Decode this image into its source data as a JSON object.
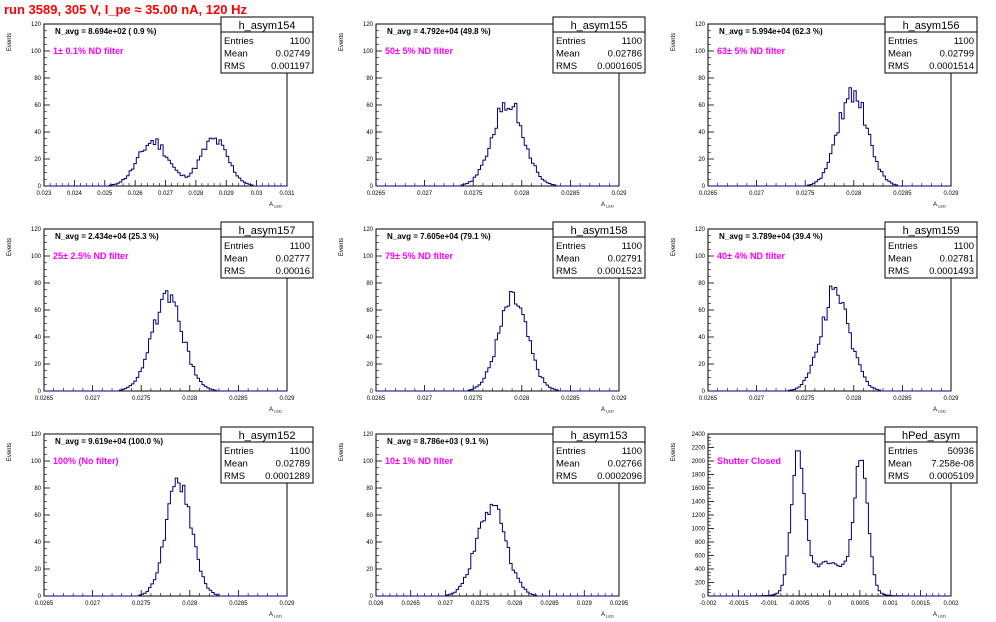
{
  "page_title": "run 3589,   305 V, I_pe ≈ 35.00 nA, 120 Hz",
  "colors": {
    "title": "#ff0000",
    "histogram": "#000080",
    "annotation": "#ff00ff",
    "axis": "#000000"
  },
  "chart_data": [
    {
      "type": "histogram",
      "name": "h_asym154",
      "stats": {
        "Entries": "1100",
        "Mean": "0.02749",
        "RMS": "0.001197"
      },
      "navg_text": "N_avg = 8.694e+02 ( 0.9 %)",
      "filter_text": "1± 0.1% ND filter",
      "ylabel": "Events",
      "xlabel": "A_LED",
      "xlim": [
        0.023,
        0.031
      ],
      "ylim": [
        0,
        120
      ],
      "xticks": [
        0.023,
        0.024,
        0.025,
        0.026,
        0.027,
        0.028,
        0.029,
        0.03,
        0.031
      ],
      "xtick_labels": [
        "0.023",
        "0.024",
        "0.025",
        "0.026",
        "0.027",
        "0.028",
        "0.029",
        "0.03",
        "0.031"
      ],
      "yticks": [
        20,
        40,
        60,
        80,
        100,
        120
      ],
      "shape": {
        "peaks": [
          [
            0.0266,
            33,
            0.0005
          ],
          [
            0.0286,
            34,
            0.00045
          ]
        ],
        "noise": 0.14
      }
    },
    {
      "type": "histogram",
      "name": "h_asym155",
      "stats": {
        "Entries": "1100",
        "Mean": "0.02786",
        "RMS": "0.0001605"
      },
      "navg_text": "N_avg = 4.792e+04 (49.8 %)",
      "filter_text": "50± 5% ND filter",
      "ylabel": "Events",
      "xlabel": "A_LED",
      "xlim": [
        0.0265,
        0.029
      ],
      "ylim": [
        0,
        120
      ],
      "xticks": [
        0.0265,
        0.027,
        0.0275,
        0.028,
        0.0285,
        0.029
      ],
      "xtick_labels": [
        "0.0265",
        "0.027",
        "0.0275",
        "0.028",
        "0.0285",
        "0.029"
      ],
      "yticks": [
        20,
        40,
        60,
        80,
        100,
        120
      ],
      "shape": {
        "peaks": [
          [
            0.02786,
            62,
            0.00016
          ]
        ],
        "noise": 0.12
      }
    },
    {
      "type": "histogram",
      "name": "h_asym156",
      "stats": {
        "Entries": "1100",
        "Mean": "0.02799",
        "RMS": "0.0001514"
      },
      "navg_text": "N_avg = 5.994e+04 (62.3 %)",
      "filter_text": "63± 5% ND filter",
      "ylabel": "Events",
      "xlabel": "A_LED",
      "xlim": [
        0.0265,
        0.029
      ],
      "ylim": [
        0,
        120
      ],
      "xticks": [
        0.0265,
        0.027,
        0.0275,
        0.028,
        0.0285,
        0.029
      ],
      "xtick_labels": [
        "0.0265",
        "0.027",
        "0.0275",
        "0.028",
        "0.0285",
        "0.029"
      ],
      "yticks": [
        20,
        40,
        60,
        80,
        100,
        120
      ],
      "shape": {
        "peaks": [
          [
            0.02799,
            70,
            0.00015
          ]
        ],
        "noise": 0.12
      }
    },
    {
      "type": "histogram",
      "name": "h_asym157",
      "stats": {
        "Entries": "1100",
        "Mean": "0.02777",
        "RMS": "0.00016"
      },
      "navg_text": "N_avg = 2.434e+04 (25.3 %)",
      "filter_text": "25± 2.5% ND filter",
      "ylabel": "Events",
      "xlabel": "A_LED",
      "xlim": [
        0.0265,
        0.029
      ],
      "ylim": [
        0,
        120
      ],
      "xticks": [
        0.0265,
        0.027,
        0.0275,
        0.028,
        0.0285,
        0.029
      ],
      "xtick_labels": [
        "0.0265",
        "0.027",
        "0.0275",
        "0.028",
        "0.0285",
        "0.029"
      ],
      "yticks": [
        20,
        40,
        60,
        80,
        100,
        120
      ],
      "shape": {
        "peaks": [
          [
            0.02777,
            68,
            0.00016
          ]
        ],
        "noise": 0.1
      }
    },
    {
      "type": "histogram",
      "name": "h_asym158",
      "stats": {
        "Entries": "1100",
        "Mean": "0.02791",
        "RMS": "0.0001523"
      },
      "navg_text": "N_avg = 7.605e+04 (79.1 %)",
      "filter_text": "79± 5% ND filter",
      "ylabel": "Events",
      "xlabel": "A_LED",
      "xlim": [
        0.0265,
        0.029
      ],
      "ylim": [
        0,
        120
      ],
      "xticks": [
        0.0265,
        0.027,
        0.0275,
        0.028,
        0.0285,
        0.029
      ],
      "xtick_labels": [
        "0.0265",
        "0.027",
        "0.0275",
        "0.028",
        "0.0285",
        "0.029"
      ],
      "yticks": [
        20,
        40,
        60,
        80,
        100,
        120
      ],
      "shape": {
        "peaks": [
          [
            0.02791,
            68,
            0.00015
          ]
        ],
        "noise": 0.12
      }
    },
    {
      "type": "histogram",
      "name": "h_asym159",
      "stats": {
        "Entries": "1100",
        "Mean": "0.02781",
        "RMS": "0.0001493"
      },
      "navg_text": "N_avg = 3.789e+04 (39.4 %)",
      "filter_text": "40± 4% ND filter",
      "ylabel": "Events",
      "xlabel": "A_LED",
      "xlim": [
        0.0265,
        0.029
      ],
      "ylim": [
        0,
        120
      ],
      "xticks": [
        0.0265,
        0.027,
        0.0275,
        0.028,
        0.0285,
        0.029
      ],
      "xtick_labels": [
        "0.0265",
        "0.027",
        "0.0275",
        "0.028",
        "0.0285",
        "0.029"
      ],
      "yticks": [
        20,
        40,
        60,
        80,
        100,
        120
      ],
      "shape": {
        "peaks": [
          [
            0.02781,
            72,
            0.00015
          ]
        ],
        "noise": 0.14
      }
    },
    {
      "type": "histogram",
      "name": "h_asym152",
      "stats": {
        "Entries": "1100",
        "Mean": "0.02789",
        "RMS": "0.0001289"
      },
      "navg_text": "N_avg = 9.619e+04 (100.0 %)",
      "filter_text": "100% (No filter)",
      "ylabel": "Events",
      "xlabel": "A_LED",
      "xlim": [
        0.0265,
        0.029
      ],
      "ylim": [
        0,
        120
      ],
      "xticks": [
        0.0265,
        0.027,
        0.0275,
        0.028,
        0.0285,
        0.029
      ],
      "xtick_labels": [
        "0.0265",
        "0.027",
        "0.0275",
        "0.028",
        "0.0285",
        "0.029"
      ],
      "yticks": [
        20,
        40,
        60,
        80,
        100,
        120
      ],
      "shape": {
        "peaks": [
          [
            0.02789,
            86,
            0.00013
          ]
        ],
        "noise": 0.1
      }
    },
    {
      "type": "histogram",
      "name": "h_asym153",
      "stats": {
        "Entries": "1100",
        "Mean": "0.02766",
        "RMS": "0.0002096"
      },
      "navg_text": "N_avg = 8.786e+03 ( 9.1 %)",
      "filter_text": "10± 1% ND filter",
      "ylabel": "Events",
      "xlabel": "A_LED",
      "xlim": [
        0.026,
        0.0295
      ],
      "ylim": [
        0,
        120
      ],
      "xticks": [
        0.026,
        0.0265,
        0.027,
        0.0275,
        0.028,
        0.0285,
        0.029,
        0.0295
      ],
      "xtick_labels": [
        "0.026",
        "0.0265",
        "0.027",
        "0.0275",
        "0.028",
        "0.0285",
        "0.029",
        "0.0295"
      ],
      "yticks": [
        20,
        40,
        60,
        80,
        100,
        120
      ],
      "shape": {
        "peaks": [
          [
            0.02766,
            68,
            0.00021
          ]
        ],
        "noise": 0.14
      }
    },
    {
      "type": "histogram",
      "name": "hPed_asym",
      "stats": {
        "Entries": "50936",
        "Mean": "7.258e-08",
        "RMS": "0.0005109"
      },
      "navg_text": "",
      "filter_text": "Shutter Closed",
      "ylabel": "Events",
      "xlabel": "A_LED",
      "xlim": [
        -0.002,
        0.002
      ],
      "ylim": [
        0,
        2400
      ],
      "xticks": [
        -0.002,
        -0.0015,
        -0.001,
        -0.0005,
        0,
        0.0005,
        0.001,
        0.0015,
        0.002
      ],
      "xtick_labels": [
        "-0.002",
        "-0.0015",
        "-0.001",
        "-0.0005",
        "0",
        "0.0005",
        "0.001",
        "0.0015",
        "0.002"
      ],
      "yticks": [
        200,
        400,
        600,
        800,
        1000,
        1200,
        1400,
        1600,
        1800,
        2000,
        2200,
        2400
      ],
      "shape": {
        "peaks": [
          [
            -0.00052,
            1950,
            0.00011
          ],
          [
            0.00052,
            1900,
            0.00011
          ],
          [
            0,
            500,
            0.00035
          ]
        ],
        "noise": 0.05
      }
    }
  ]
}
